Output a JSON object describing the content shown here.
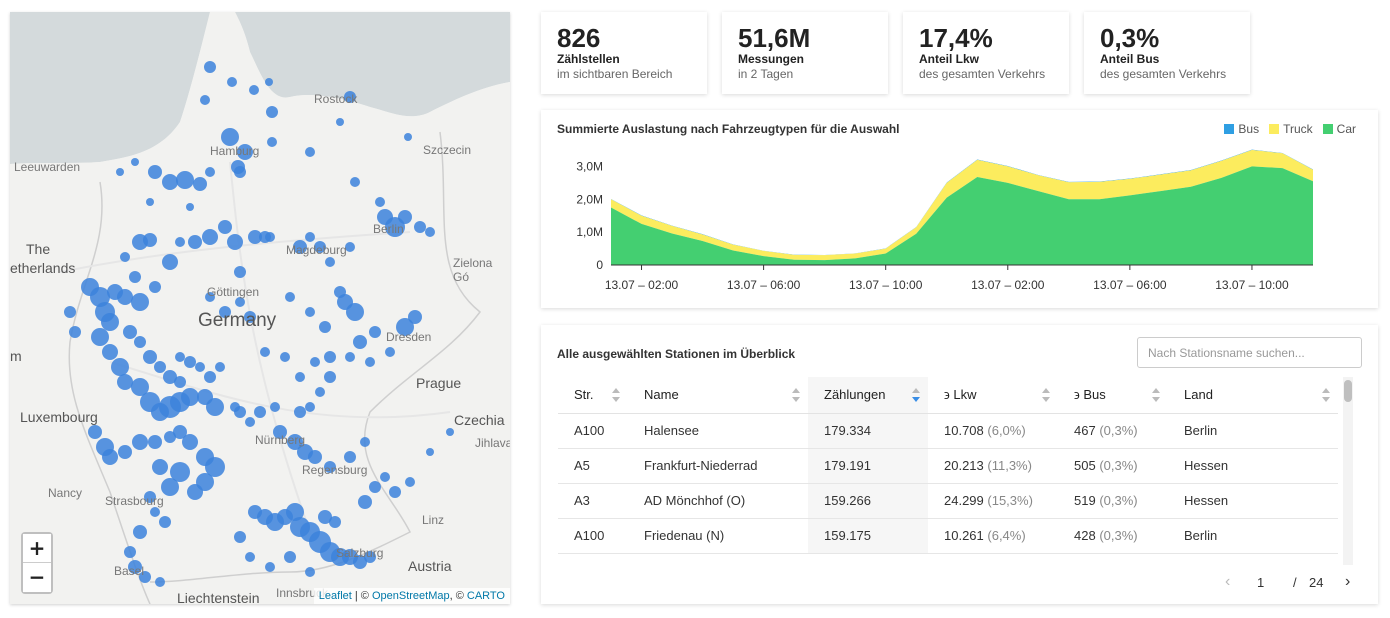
{
  "map": {
    "labels": [
      {
        "text": "Rostock",
        "kind": "city"
      },
      {
        "text": "Hamburg",
        "kind": "city"
      },
      {
        "text": "Szczecin",
        "kind": "city"
      },
      {
        "text": "Leeuwarden",
        "kind": "city"
      },
      {
        "text": "Berlin",
        "kind": "city"
      },
      {
        "text": "The",
        "kind": "country"
      },
      {
        "text": "etherlands",
        "kind": "country"
      },
      {
        "text": "Magdeburg",
        "kind": "city"
      },
      {
        "text": "Zielona Gó",
        "kind": "city"
      },
      {
        "text": "Göttingen",
        "kind": "city"
      },
      {
        "text": "Germany",
        "kind": "big"
      },
      {
        "text": "Dresden",
        "kind": "city"
      },
      {
        "text": "m",
        "kind": "country"
      },
      {
        "text": "Prague",
        "kind": "city"
      },
      {
        "text": "Luxembourg",
        "kind": "country"
      },
      {
        "text": "Czechia",
        "kind": "country"
      },
      {
        "text": "Jihlava",
        "kind": "city"
      },
      {
        "text": "Nürnberg",
        "kind": "city"
      },
      {
        "text": "Regensburg",
        "kind": "city"
      },
      {
        "text": "Nancy",
        "kind": "city"
      },
      {
        "text": "Strasbourg",
        "kind": "city"
      },
      {
        "text": "Linz",
        "kind": "city"
      },
      {
        "text": "Salzburg",
        "kind": "city"
      },
      {
        "text": "Austria",
        "kind": "country"
      },
      {
        "text": "Basel",
        "kind": "city"
      },
      {
        "text": "Liechtenstein",
        "kind": "country"
      },
      {
        "text": "Innsbruck",
        "kind": "city"
      }
    ],
    "zoom_in": "+",
    "zoom_out": "−",
    "attribution": {
      "leaflet": "Leaflet",
      "sep1": " | © ",
      "osm": "OpenStreetMap",
      "sep2": ", © ",
      "carto": "CARTO"
    },
    "marker_color": "#3c82dc"
  },
  "stats": [
    {
      "value": "826",
      "label": "Zählstellen",
      "sub": "im sichtbaren Bereich"
    },
    {
      "value": "51,6M",
      "label": "Messungen",
      "sub": "in 2 Tagen"
    },
    {
      "value": "17,4%",
      "label": "Anteil Lkw",
      "sub": "des gesamten Verkehrs"
    },
    {
      "value": "0,3%",
      "label": "Anteil Bus",
      "sub": "des gesamten Verkehrs"
    }
  ],
  "chart": {
    "title": "Summierte Auslastung nach Fahrzeugtypen für die Auswahl"
  },
  "chart_data": {
    "type": "area",
    "stacked": true,
    "x_tick_labels": [
      "13.07 – 02:00",
      "13.07 – 06:00",
      "13.07 – 10:00",
      "13.07 – 02:00",
      "13.07 – 06:00",
      "13.07 – 10:00"
    ],
    "y_tick_labels": [
      "0",
      "1,0M",
      "2,0M",
      "3,0M"
    ],
    "ylim": [
      0,
      3500000
    ],
    "x_hours": [
      1,
      2,
      3,
      4,
      5,
      6,
      7,
      8,
      9,
      10,
      11,
      12,
      13,
      14,
      15,
      16,
      17,
      18,
      19,
      20,
      21,
      22,
      23,
      24
    ],
    "legend_position": "top-right",
    "series": [
      {
        "name": "Car",
        "color": "#44cf71",
        "values": [
          1750000,
          1250000,
          960000,
          730000,
          440000,
          270000,
          160000,
          150000,
          200000,
          350000,
          950000,
          2050000,
          2680000,
          2500000,
          2250000,
          2000000,
          2000000,
          2120000,
          2250000,
          2380000,
          2650000,
          3000000,
          2950000,
          2550000
        ]
      },
      {
        "name": "Truck",
        "color": "#fcec5e",
        "values": [
          250000,
          250000,
          230000,
          200000,
          180000,
          160000,
          150000,
          150000,
          150000,
          150000,
          200000,
          450000,
          520000,
          500000,
          480000,
          520000,
          530000,
          500000,
          500000,
          500000,
          520000,
          500000,
          450000,
          350000
        ]
      },
      {
        "name": "Bus",
        "color": "#2f9fe3",
        "values": [
          10000,
          10000,
          9000,
          8000,
          6000,
          5000,
          4000,
          4000,
          5000,
          6000,
          8000,
          10000,
          12000,
          12000,
          11000,
          11000,
          11000,
          11000,
          11000,
          11000,
          11000,
          11000,
          10000,
          9000
        ]
      }
    ]
  },
  "table": {
    "title": "Alle ausgewählten Stationen im Überblick",
    "search_placeholder": "Nach Stationsname suchen...",
    "columns": [
      "Str.",
      "Name",
      "Zählungen",
      "϶ Lkw",
      "϶ Bus",
      "Land"
    ],
    "rows": [
      {
        "street": "A100",
        "name": "Halensee",
        "count": "179.334",
        "lkw": "10.708",
        "lkw_pct": "(6,0%)",
        "bus": "467",
        "bus_pct": "(0,3%)",
        "land": "Berlin"
      },
      {
        "street": "A5",
        "name": "Frankfurt-Niederrad",
        "count": "179.191",
        "lkw": "20.213",
        "lkw_pct": "(11,3%)",
        "bus": "505",
        "bus_pct": "(0,3%)",
        "land": "Hessen"
      },
      {
        "street": "A3",
        "name": "AD Mönchhof (O)",
        "count": "159.266",
        "lkw": "24.299",
        "lkw_pct": "(15,3%)",
        "bus": "519",
        "bus_pct": "(0,3%)",
        "land": "Hessen"
      },
      {
        "street": "A100",
        "name": "Friedenau (N)",
        "count": "159.175",
        "lkw": "10.261",
        "lkw_pct": "(6,4%)",
        "bus": "428",
        "bus_pct": "(0,3%)",
        "land": "Berlin"
      }
    ],
    "pagination": {
      "prev": "‹",
      "current": "1",
      "separator": "/",
      "total": "24",
      "next": "›"
    }
  }
}
